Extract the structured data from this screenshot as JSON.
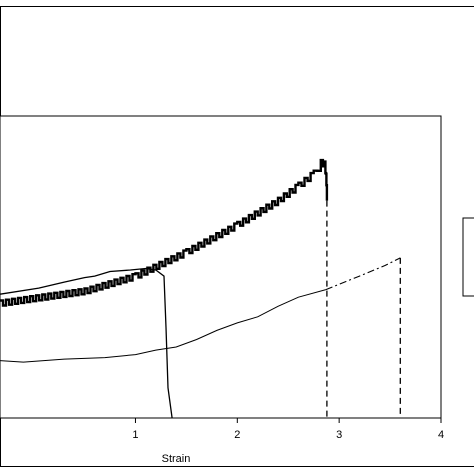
{
  "chart_data": {
    "type": "line",
    "title": "",
    "xlabel": "Strain",
    "ylabel": "",
    "xlim": [
      -0.33,
      4
    ],
    "ylim": [
      0,
      100
    ],
    "x_ticks": [
      1,
      2,
      3,
      4
    ],
    "x_tick_labels": [
      "1",
      "2",
      "3",
      "4"
    ],
    "grid": false,
    "legend": "right",
    "series": [
      {
        "style": "solid",
        "x": [
          -0.33,
          0.05,
          0.3,
          0.5,
          0.6,
          0.75,
          0.95,
          1.1,
          1.2,
          1.28,
          1.3,
          1.32,
          1.36
        ],
        "y": [
          41,
          43,
          45,
          46.5,
          47,
          48.5,
          49,
          49.5,
          49,
          47,
          30,
          10,
          0
        ]
      },
      {
        "style": "stair",
        "x": [
          -0.33,
          0.5,
          1.0,
          1.5,
          2.0,
          2.4,
          2.6,
          2.75,
          2.82,
          2.86,
          2.87,
          2.88,
          2.88
        ],
        "y": [
          38,
          42,
          47,
          55,
          64,
          72,
          77,
          81,
          84.5,
          84,
          80,
          76,
          72
        ]
      },
      {
        "style": "dashed",
        "x": [
          2.88,
          2.88
        ],
        "y": [
          72,
          0
        ]
      },
      {
        "style": "solid-thin",
        "x": [
          -0.33,
          -0.1,
          0.3,
          0.7,
          1.0,
          1.2,
          1.4,
          1.6,
          1.8,
          2.0,
          2.2,
          2.4,
          2.6,
          2.87
        ],
        "y": [
          19,
          18.5,
          19.5,
          20,
          21,
          22.5,
          23.5,
          26,
          29,
          31.5,
          33.5,
          37,
          40,
          42.5
        ]
      },
      {
        "style": "dash-dot",
        "x": [
          2.87,
          3.2,
          3.45,
          3.6
        ],
        "y": [
          42.5,
          47,
          50.5,
          53
        ]
      },
      {
        "style": "dashed",
        "x": [
          3.6,
          3.6
        ],
        "y": [
          53,
          0
        ]
      }
    ]
  }
}
